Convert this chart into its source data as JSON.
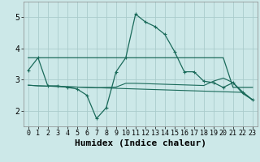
{
  "xlabel": "Humidex (Indice chaleur)",
  "xlim": [
    -0.5,
    23.5
  ],
  "ylim": [
    1.5,
    5.5
  ],
  "yticks": [
    2,
    3,
    4,
    5
  ],
  "xticks": [
    0,
    1,
    2,
    3,
    4,
    5,
    6,
    7,
    8,
    9,
    10,
    11,
    12,
    13,
    14,
    15,
    16,
    17,
    18,
    19,
    20,
    21,
    22,
    23
  ],
  "bg_color": "#cce8e8",
  "grid_color": "#aacccc",
  "line_color": "#1a6a5a",
  "main_line": {
    "x": [
      0,
      1,
      2,
      3,
      4,
      5,
      6,
      7,
      8,
      9,
      10,
      11,
      12,
      13,
      14,
      15,
      16,
      17,
      18,
      19,
      20,
      21,
      22,
      23
    ],
    "y": [
      3.3,
      3.7,
      2.8,
      2.8,
      2.75,
      2.7,
      2.5,
      1.75,
      2.1,
      3.25,
      3.7,
      5.1,
      4.85,
      4.7,
      4.45,
      3.9,
      3.25,
      3.25,
      2.95,
      2.9,
      2.75,
      2.9,
      2.6,
      2.35
    ]
  },
  "horiz_line": {
    "x": [
      0,
      1,
      2,
      3,
      4,
      5,
      6,
      7,
      8,
      9,
      10,
      11,
      12,
      13,
      14,
      15,
      16,
      17,
      18,
      19,
      20,
      21,
      22,
      23
    ],
    "y": [
      3.7,
      3.7,
      3.7,
      3.7,
      3.7,
      3.7,
      3.7,
      3.7,
      3.7,
      3.7,
      3.7,
      3.7,
      3.7,
      3.7,
      3.7,
      3.7,
      3.7,
      3.7,
      3.7,
      3.7,
      3.7,
      2.75,
      2.75,
      2.75
    ]
  },
  "decline_line1": {
    "x": [
      0,
      1,
      2,
      3,
      4,
      5,
      6,
      7,
      8,
      9,
      10,
      11,
      12,
      13,
      14,
      15,
      16,
      17,
      18,
      19,
      20,
      21,
      22,
      23
    ],
    "y": [
      2.82,
      2.8,
      2.79,
      2.78,
      2.77,
      2.76,
      2.75,
      2.74,
      2.73,
      2.72,
      2.71,
      2.7,
      2.69,
      2.68,
      2.67,
      2.66,
      2.65,
      2.64,
      2.63,
      2.62,
      2.61,
      2.6,
      2.59,
      2.35
    ]
  },
  "decline_line2": {
    "x": [
      0,
      1,
      2,
      3,
      4,
      5,
      6,
      7,
      8,
      9,
      10,
      11,
      12,
      13,
      14,
      15,
      16,
      17,
      18,
      19,
      20,
      21,
      22,
      23
    ],
    "y": [
      2.82,
      2.8,
      2.79,
      2.78,
      2.77,
      2.76,
      2.75,
      2.74,
      2.75,
      2.76,
      2.88,
      2.88,
      2.87,
      2.86,
      2.85,
      2.84,
      2.83,
      2.82,
      2.81,
      2.95,
      3.05,
      2.9,
      2.55,
      2.35
    ]
  },
  "font_color": "#000000",
  "tick_fontsize": 7,
  "label_fontsize": 8
}
